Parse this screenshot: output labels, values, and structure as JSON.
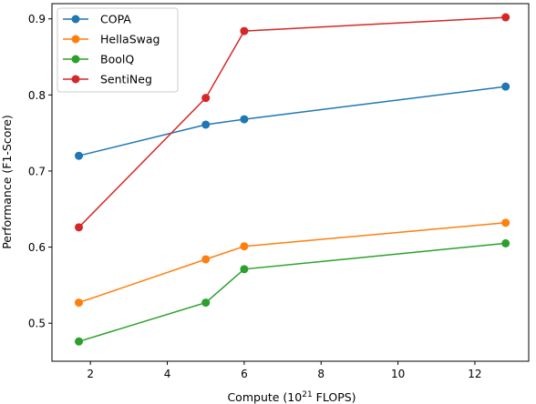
{
  "chart_data": {
    "type": "line",
    "xlabel_prefix": "Compute (10",
    "xlabel_sup": "21",
    "xlabel_suffix": " FLOPS)",
    "ylabel": "Performance (F1-Score)",
    "x": [
      1.7,
      5.0,
      6.0,
      12.8
    ],
    "xlim": [
      1.0,
      13.4
    ],
    "ylim": [
      0.45,
      0.92
    ],
    "xticks": [
      2,
      4,
      6,
      8,
      10,
      12
    ],
    "yticks": [
      0.5,
      0.6,
      0.7,
      0.8,
      0.9
    ],
    "xtick_labels": [
      "2",
      "4",
      "6",
      "8",
      "10",
      "12"
    ],
    "ytick_labels": [
      "0.5",
      "0.6",
      "0.7",
      "0.8",
      "0.9"
    ],
    "grid": false,
    "legend_position": "top-left",
    "series": [
      {
        "name": "COPA",
        "color": "#1f77b4",
        "values": [
          0.72,
          0.761,
          0.768,
          0.811
        ]
      },
      {
        "name": "HellaSwag",
        "color": "#ff7f0e",
        "values": [
          0.527,
          0.584,
          0.601,
          0.632
        ]
      },
      {
        "name": "BoolQ",
        "color": "#2ca02c",
        "values": [
          0.476,
          0.527,
          0.571,
          0.605
        ]
      },
      {
        "name": "SentiNeg",
        "color": "#d62728",
        "values": [
          0.626,
          0.796,
          0.884,
          0.902
        ]
      }
    ]
  }
}
